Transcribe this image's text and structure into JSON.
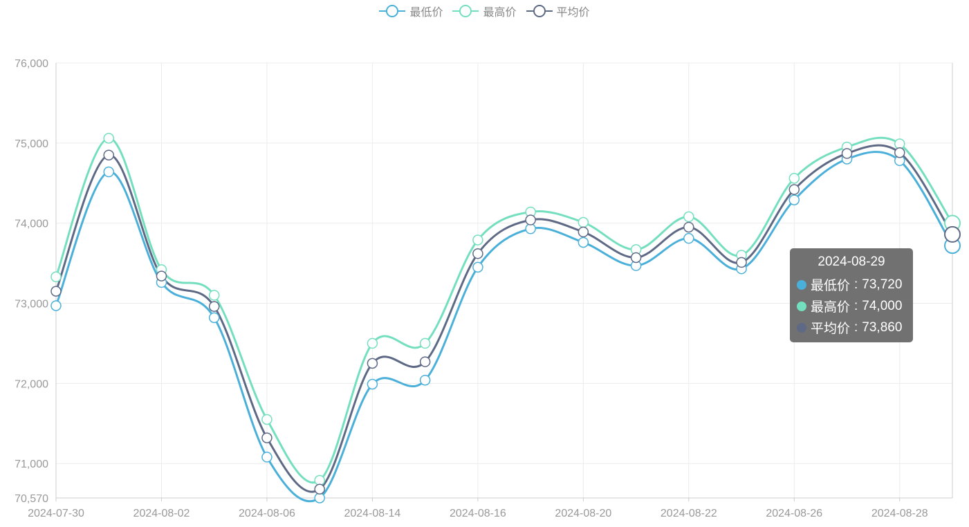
{
  "legend": [
    {
      "label": "最低价",
      "color": "#4ab0d9"
    },
    {
      "label": "最高价",
      "color": "#74dfbf"
    },
    {
      "label": "平均价",
      "color": "#5e6986"
    }
  ],
  "tooltip": {
    "title": "2024-08-29",
    "rows": [
      {
        "label": "最低价",
        "value": "73,720",
        "color": "#4ab0d9"
      },
      {
        "label": "最高价",
        "value": "74,000",
        "color": "#74dfbf"
      },
      {
        "label": "平均价",
        "value": "73,860",
        "color": "#5e6986"
      }
    ]
  },
  "chart_data": {
    "type": "line",
    "x": [
      "2024-07-30",
      "2024-07-31",
      "2024-08-02",
      "2024-08-05",
      "2024-08-06",
      "2024-08-13",
      "2024-08-14",
      "2024-08-15",
      "2024-08-16",
      "2024-08-19",
      "2024-08-20",
      "2024-08-21",
      "2024-08-22",
      "2024-08-23",
      "2024-08-26",
      "2024-08-27",
      "2024-08-28",
      "2024-08-29"
    ],
    "x_tick_labels": [
      "2024-07-30",
      "2024-08-02",
      "2024-08-06",
      "2024-08-14",
      "2024-08-16",
      "2024-08-20",
      "2024-08-22",
      "2024-08-26",
      "2024-08-28"
    ],
    "series": [
      {
        "name": "最低价",
        "color": "#4ab0d9",
        "values": [
          72970,
          74640,
          73260,
          72820,
          71080,
          70570,
          71990,
          72040,
          73450,
          73930,
          73760,
          73470,
          73810,
          73430,
          74290,
          74800,
          74780,
          73720
        ]
      },
      {
        "name": "最高价",
        "color": "#74dfbf",
        "values": [
          73330,
          75060,
          73420,
          73100,
          71550,
          70790,
          72500,
          72500,
          73790,
          74140,
          74010,
          73670,
          74080,
          73600,
          74560,
          74950,
          74990,
          74000
        ]
      },
      {
        "name": "平均价",
        "color": "#5e6986",
        "values": [
          73150,
          74850,
          73340,
          72960,
          71320,
          70680,
          72250,
          72270,
          73620,
          74040,
          73890,
          73570,
          73950,
          73510,
          74420,
          74870,
          74880,
          73860
        ]
      }
    ],
    "y_tick_labels": [
      "70,570",
      "71,000",
      "72,000",
      "73,000",
      "74,000",
      "75,000",
      "76,000"
    ],
    "y_ticks": [
      70570,
      71000,
      72000,
      73000,
      74000,
      75000,
      76000
    ],
    "ylim": [
      70570,
      76000
    ],
    "grid": true,
    "legend_position": "top-center",
    "highlight_index": 17
  }
}
